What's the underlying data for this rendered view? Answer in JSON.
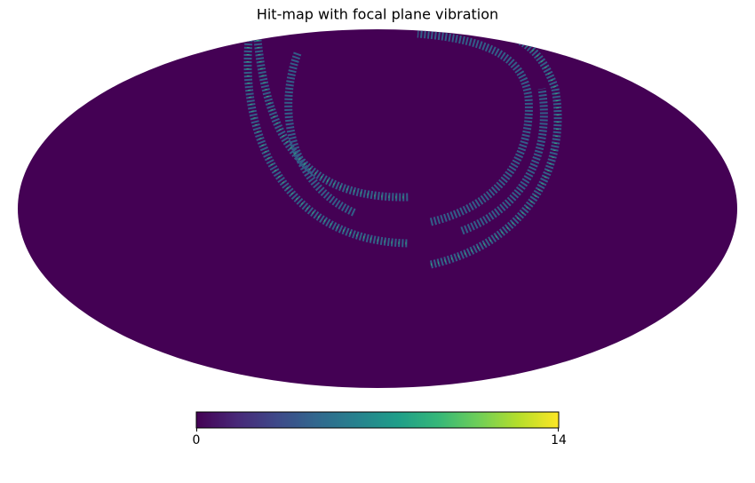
{
  "chart_data": {
    "type": "healpix-map",
    "projection": "mollweide",
    "title": "Hit-map with focal plane vibration",
    "colorbar": {
      "min": 0,
      "max": 14,
      "colormap": "viridis"
    }
  }
}
